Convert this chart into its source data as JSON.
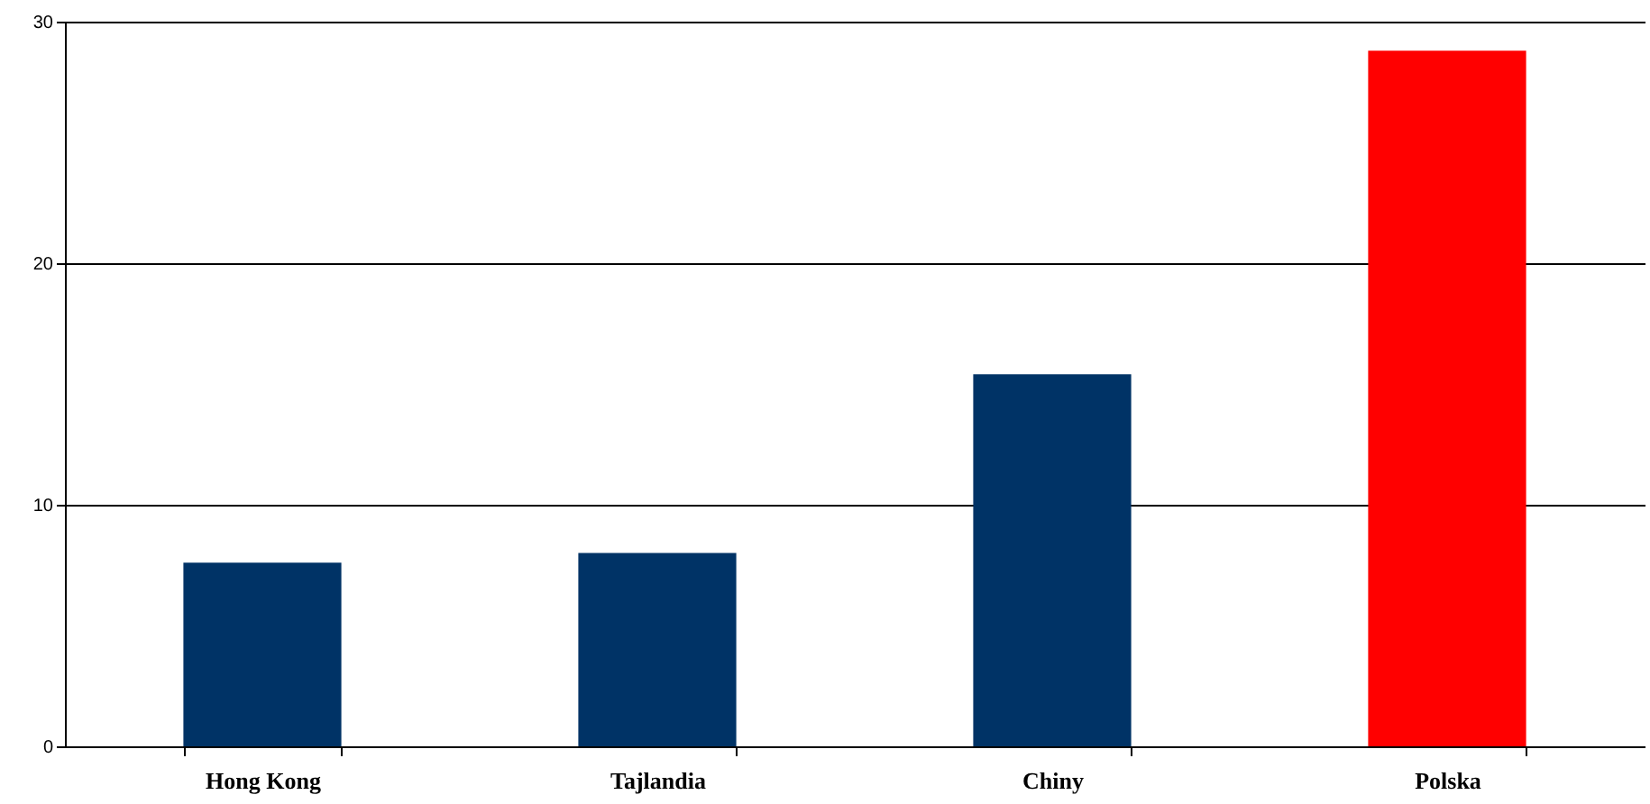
{
  "chart_data": {
    "type": "bar",
    "categories": [
      "Hong Kong",
      "Tajlandia",
      "Chiny",
      "Polska"
    ],
    "values": [
      7.6,
      8.0,
      15.4,
      28.8
    ],
    "colors": [
      "#003366",
      "#003366",
      "#003366",
      "#ff0000"
    ],
    "ylim": [
      0,
      30
    ],
    "yticks": [
      0,
      10,
      20,
      30
    ],
    "grid": "y"
  }
}
